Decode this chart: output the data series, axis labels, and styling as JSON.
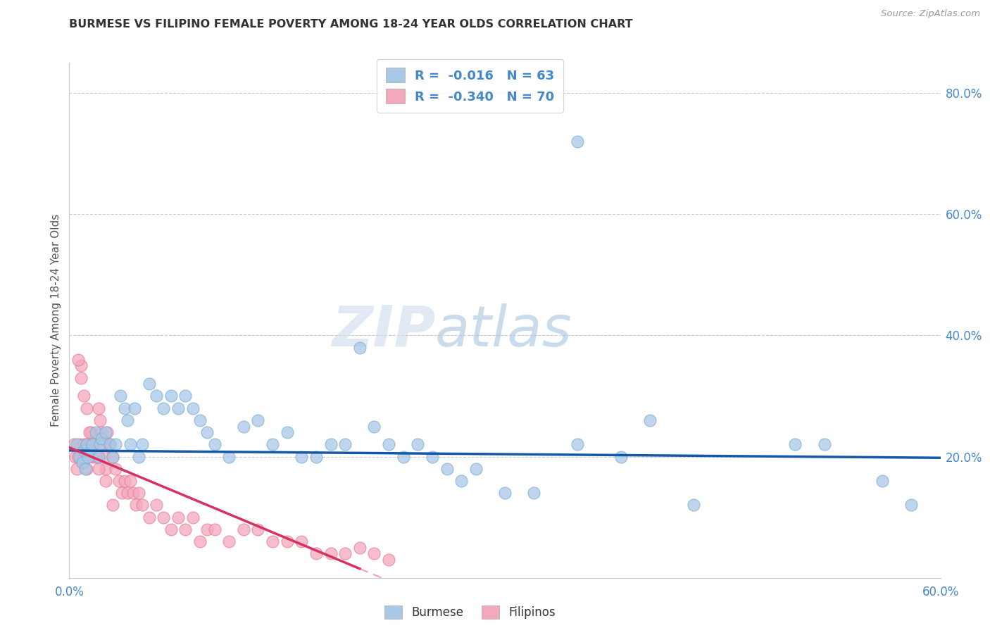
{
  "title": "BURMESE VS FILIPINO FEMALE POVERTY AMONG 18-24 YEAR OLDS CORRELATION CHART",
  "source": "Source: ZipAtlas.com",
  "ylabel": "Female Poverty Among 18-24 Year Olds",
  "xlim": [
    0.0,
    0.6
  ],
  "ylim": [
    0.0,
    0.85
  ],
  "xtick_positions": [
    0.0,
    0.1,
    0.2,
    0.3,
    0.4,
    0.5,
    0.6
  ],
  "xticklabels": [
    "0.0%",
    "",
    "",
    "",
    "",
    "",
    "60.0%"
  ],
  "ytick_right_positions": [
    0.0,
    0.2,
    0.4,
    0.6,
    0.8
  ],
  "ytick_right_labels": [
    "",
    "20.0%",
    "40.0%",
    "60.0%",
    "80.0%"
  ],
  "burmese_color": "#a8c8e8",
  "filipino_color": "#f4a8bc",
  "burmese_edge_color": "#7aaed0",
  "filipino_edge_color": "#e87898",
  "burmese_line_color": "#1458a8",
  "filipino_line_color": "#d83060",
  "filipino_dash_color": "#f0a0b8",
  "legend_text_color": "#4488cc",
  "axis_color": "#4488cc",
  "grid_color": "#cccccc",
  "watermark_color": "#ccddf0",
  "burmese_R": -0.016,
  "burmese_N": 63,
  "filipino_R": -0.34,
  "filipino_N": 70,
  "watermark": "ZIPatlas",
  "burmese_x": [
    0.005,
    0.007,
    0.009,
    0.01,
    0.011,
    0.012,
    0.013,
    0.015,
    0.016,
    0.018,
    0.02,
    0.021,
    0.022,
    0.025,
    0.028,
    0.03,
    0.032,
    0.035,
    0.038,
    0.04,
    0.042,
    0.045,
    0.048,
    0.05,
    0.055,
    0.06,
    0.065,
    0.07,
    0.075,
    0.08,
    0.085,
    0.09,
    0.095,
    0.1,
    0.11,
    0.12,
    0.13,
    0.14,
    0.15,
    0.16,
    0.17,
    0.18,
    0.19,
    0.2,
    0.21,
    0.22,
    0.23,
    0.24,
    0.25,
    0.26,
    0.27,
    0.28,
    0.3,
    0.32,
    0.35,
    0.38,
    0.4,
    0.43,
    0.5,
    0.52,
    0.35,
    0.56,
    0.58
  ],
  "burmese_y": [
    0.22,
    0.2,
    0.19,
    0.21,
    0.18,
    0.22,
    0.2,
    0.21,
    0.22,
    0.24,
    0.2,
    0.22,
    0.23,
    0.24,
    0.22,
    0.2,
    0.22,
    0.3,
    0.28,
    0.26,
    0.22,
    0.28,
    0.2,
    0.22,
    0.32,
    0.3,
    0.28,
    0.3,
    0.28,
    0.3,
    0.28,
    0.26,
    0.24,
    0.22,
    0.2,
    0.25,
    0.26,
    0.22,
    0.24,
    0.2,
    0.2,
    0.22,
    0.22,
    0.38,
    0.25,
    0.22,
    0.2,
    0.22,
    0.2,
    0.18,
    0.16,
    0.18,
    0.14,
    0.14,
    0.22,
    0.2,
    0.26,
    0.12,
    0.22,
    0.22,
    0.72,
    0.16,
    0.12
  ],
  "filipino_x": [
    0.003,
    0.004,
    0.005,
    0.006,
    0.007,
    0.008,
    0.009,
    0.01,
    0.01,
    0.011,
    0.012,
    0.012,
    0.013,
    0.014,
    0.015,
    0.016,
    0.017,
    0.018,
    0.019,
    0.02,
    0.021,
    0.022,
    0.023,
    0.024,
    0.025,
    0.026,
    0.028,
    0.03,
    0.032,
    0.034,
    0.036,
    0.038,
    0.04,
    0.042,
    0.044,
    0.046,
    0.048,
    0.05,
    0.055,
    0.06,
    0.065,
    0.07,
    0.075,
    0.08,
    0.085,
    0.09,
    0.095,
    0.1,
    0.11,
    0.12,
    0.13,
    0.14,
    0.15,
    0.16,
    0.17,
    0.18,
    0.19,
    0.2,
    0.21,
    0.22,
    0.006,
    0.008,
    0.01,
    0.012,
    0.014,
    0.016,
    0.018,
    0.02,
    0.025,
    0.03
  ],
  "filipino_y": [
    0.22,
    0.2,
    0.18,
    0.2,
    0.22,
    0.35,
    0.19,
    0.22,
    0.2,
    0.21,
    0.18,
    0.22,
    0.2,
    0.22,
    0.24,
    0.2,
    0.22,
    0.23,
    0.2,
    0.28,
    0.26,
    0.24,
    0.22,
    0.2,
    0.18,
    0.24,
    0.22,
    0.2,
    0.18,
    0.16,
    0.14,
    0.16,
    0.14,
    0.16,
    0.14,
    0.12,
    0.14,
    0.12,
    0.1,
    0.12,
    0.1,
    0.08,
    0.1,
    0.08,
    0.1,
    0.06,
    0.08,
    0.08,
    0.06,
    0.08,
    0.08,
    0.06,
    0.06,
    0.06,
    0.04,
    0.04,
    0.04,
    0.05,
    0.04,
    0.03,
    0.36,
    0.33,
    0.3,
    0.28,
    0.24,
    0.22,
    0.2,
    0.18,
    0.16,
    0.12
  ]
}
